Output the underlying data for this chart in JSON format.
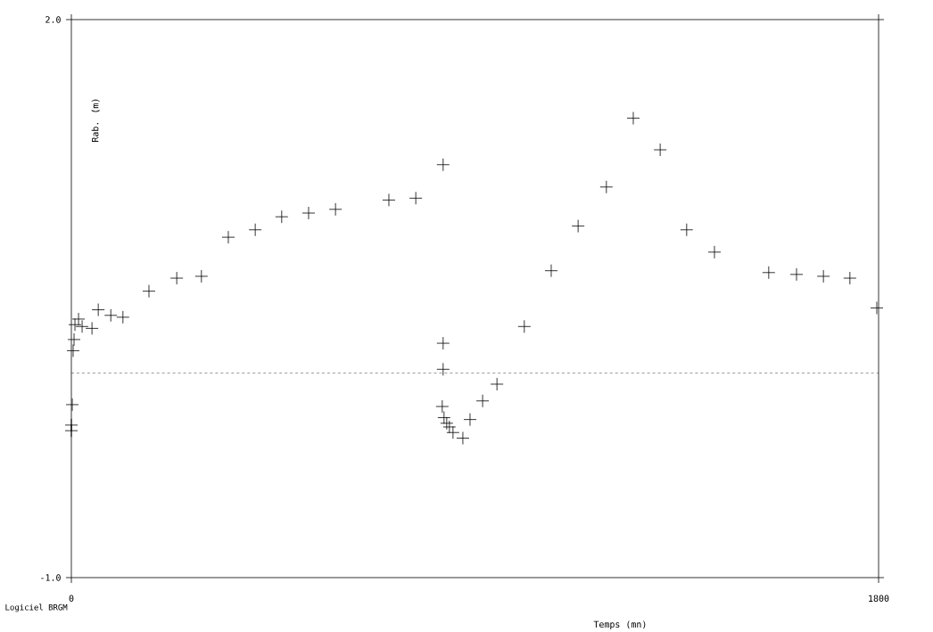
{
  "chart_data": {
    "type": "scatter",
    "xlabel": "Temps (mn)",
    "ylabel": "Rab. (m)",
    "x": [
      0,
      0,
      2,
      4,
      6,
      8,
      16,
      24,
      46,
      60,
      88,
      115,
      173,
      235,
      290,
      350,
      410,
      469,
      529,
      589,
      708,
      768,
      829,
      829,
      829,
      827,
      831,
      837,
      843,
      851,
      873,
      889,
      917,
      949,
      1010,
      1070,
      1130,
      1193,
      1253,
      1313,
      1372,
      1434,
      1555,
      1617,
      1677,
      1736,
      1796
    ],
    "values": [
      -0.18,
      -0.21,
      -0.07,
      0.22,
      0.28,
      0.36,
      0.39,
      0.35,
      0.34,
      0.44,
      0.41,
      0.4,
      0.54,
      0.61,
      0.62,
      0.83,
      0.87,
      0.94,
      0.96,
      0.98,
      1.03,
      1.04,
      1.22,
      0.26,
      0.12,
      -0.08,
      -0.14,
      -0.17,
      -0.19,
      -0.22,
      -0.25,
      -0.15,
      -0.05,
      0.04,
      0.35,
      0.65,
      0.89,
      1.1,
      1.47,
      1.3,
      0.87,
      0.75,
      0.64,
      0.63,
      0.62,
      0.61,
      0.45
    ],
    "color": "#000000",
    "marker": "cross",
    "xlim": [
      0,
      1800
    ],
    "ylim": [
      -1.0,
      2.0
    ],
    "xticks": [
      0,
      1800
    ],
    "yticks": [
      {
        "value": -1.0,
        "label": "-1.0"
      },
      {
        "value": 2.0,
        "label": "2.0"
      }
    ],
    "ref_lines": [
      {
        "axis": "y",
        "value": 0.1,
        "line_style": "dashed"
      }
    ],
    "grid": false,
    "annotations": [
      "Logiciel BRGM"
    ]
  }
}
